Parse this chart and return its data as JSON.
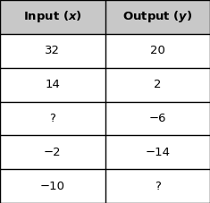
{
  "col_headers": [
    "Input (χ)",
    "Output (γ)"
  ],
  "header_left": "Input (",
  "header_left_var": "x",
  "header_left_end": ")",
  "header_right": "Output (",
  "header_right_var": "y",
  "header_right_end": ")",
  "rows": [
    [
      "32",
      "20"
    ],
    [
      "14",
      "2"
    ],
    [
      "?",
      "−6"
    ],
    [
      "−2",
      "−14"
    ],
    [
      "−10",
      "?"
    ]
  ],
  "header_bg": "#c8c8c8",
  "cell_bg": "#ffffff",
  "border_color": "#000000",
  "header_fontsize": 9.5,
  "cell_fontsize": 9.5,
  "fig_bg": "#ffffff",
  "fig_width": 2.35,
  "fig_height": 2.27,
  "dpi": 100
}
